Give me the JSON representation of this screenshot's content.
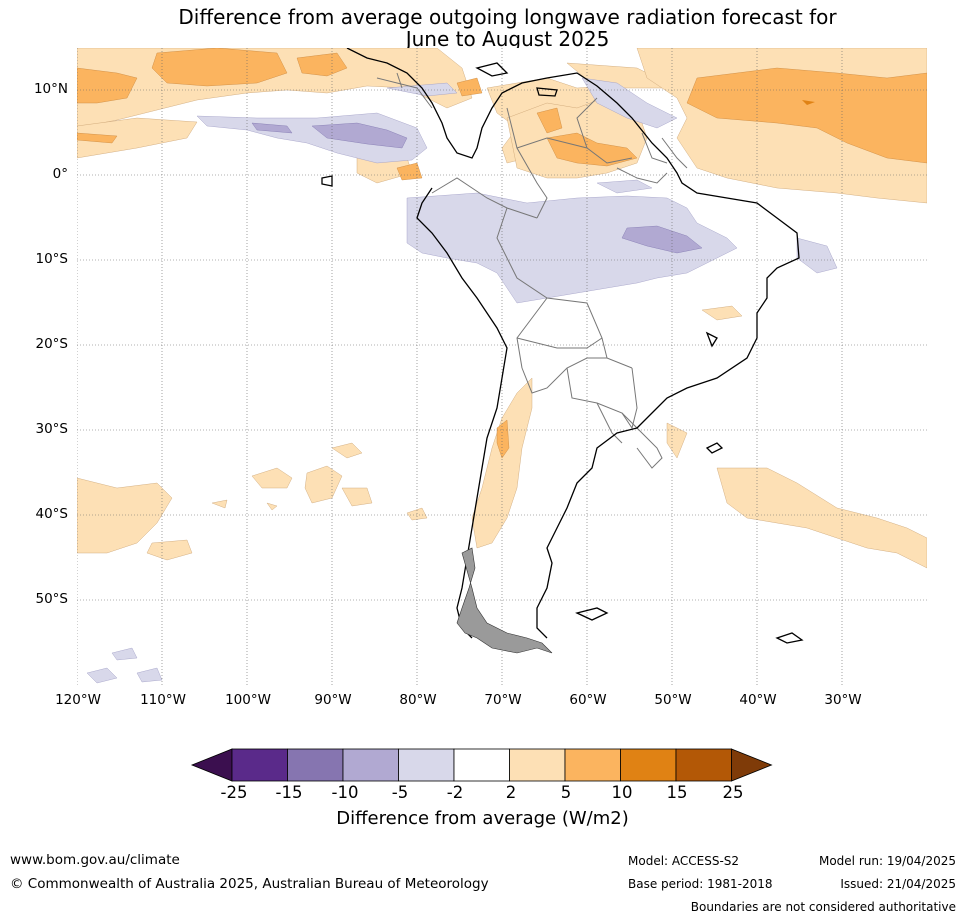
{
  "title": {
    "line1": "Difference from average outgoing longwave radiation forecast for",
    "line2": "June to August 2025"
  },
  "axes": {
    "lat_labels": [
      "10°N",
      "0°",
      "10°S",
      "20°S",
      "30°S",
      "40°S",
      "50°S"
    ],
    "lon_labels": [
      "120°W",
      "110°W",
      "100°W",
      "90°W",
      "80°W",
      "70°W",
      "60°W",
      "50°W",
      "40°W",
      "30°W"
    ],
    "lon_range": [
      -120,
      -20
    ],
    "lat_range": [
      -60,
      15
    ],
    "grid": true
  },
  "colorbar": {
    "ticks": [
      "-25",
      "-15",
      "-10",
      "-5",
      "-2",
      "2",
      "5",
      "10",
      "15",
      "25"
    ],
    "colors": [
      "#3b0f4f",
      "#5a2a8a",
      "#8675b0",
      "#b1a9d2",
      "#d8d8ea",
      "#ffffff",
      "#fde0b5",
      "#fbb45f",
      "#e08214",
      "#b35806",
      "#7f3b08"
    ],
    "label": "Difference from average (W/m2)"
  },
  "footer": {
    "url": "www.bom.gov.au/climate",
    "copyright": "© Commonwealth of Australia 2025, Australian Bureau of Meteorology",
    "model": "Model: ACCESS-S2",
    "base_period": "Base period: 1981-2018",
    "model_run": "Model run: 19/04/2025",
    "issued": "Issued: 21/04/2025",
    "disclaimer": "Boundaries are not considered authoritative"
  }
}
